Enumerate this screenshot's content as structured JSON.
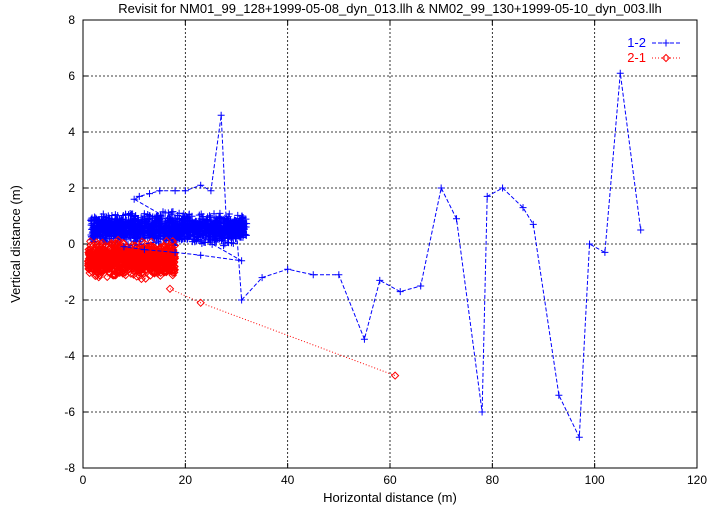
{
  "chart_data": {
    "type": "line",
    "title": "Revisit for NM01_99_128+1999-05-08_dyn_013.llh & NM02_99_130+1999-05-10_dyn_003.llh",
    "xlabel": "Horizontal distance (m)",
    "ylabel": "Vertical distance (m)",
    "xlim": [
      0,
      120
    ],
    "ylim": [
      -8,
      8
    ],
    "xticks": [
      0,
      20,
      40,
      60,
      80,
      100,
      120
    ],
    "yticks": [
      -8,
      -6,
      -4,
      -2,
      0,
      2,
      4,
      6,
      8
    ],
    "grid": true,
    "legend_position": "top-right",
    "series": [
      {
        "name": "1-2",
        "color": "#0000ff",
        "marker": "plus",
        "line_style": "dashed",
        "points": [
          [
            28,
            0.8
          ],
          [
            27,
            4.6
          ],
          [
            25,
            1.9
          ],
          [
            23,
            2.1
          ],
          [
            20,
            1.9
          ],
          [
            18,
            1.9
          ],
          [
            15,
            1.9
          ],
          [
            13,
            1.8
          ],
          [
            11,
            1.7
          ],
          [
            10,
            1.6
          ],
          [
            31,
            -0.6
          ],
          [
            23,
            -0.4
          ],
          [
            18,
            -0.3
          ],
          [
            12,
            -0.2
          ],
          [
            8,
            -0.1
          ],
          [
            30,
            0.5
          ],
          [
            31,
            -2.0
          ],
          [
            35,
            -1.2
          ],
          [
            40,
            -0.9
          ],
          [
            45,
            -1.1
          ],
          [
            50,
            -1.1
          ],
          [
            55,
            -3.4
          ],
          [
            58,
            -1.3
          ],
          [
            62,
            -1.7
          ],
          [
            66,
            -1.5
          ],
          [
            70,
            2.0
          ],
          [
            73,
            0.9
          ],
          [
            78,
            -6.0
          ],
          [
            79,
            1.7
          ],
          [
            82,
            2.0
          ],
          [
            86,
            1.3
          ],
          [
            88,
            0.7
          ],
          [
            93,
            -5.4
          ],
          [
            97,
            -6.9
          ],
          [
            99,
            0.0
          ],
          [
            102,
            -0.3
          ],
          [
            105,
            6.1
          ],
          [
            109,
            0.5
          ]
        ]
      },
      {
        "name": "2-1",
        "color": "#ff0000",
        "marker": "diamond",
        "line_style": "dotted",
        "points": [
          [
            17,
            -1.6
          ],
          [
            23,
            -2.1
          ],
          [
            61,
            -4.7
          ]
        ]
      }
    ],
    "dense_clusters": [
      {
        "series": "1-2",
        "x_range": [
          1.5,
          32
        ],
        "y_range": [
          -0.1,
          1.3
        ],
        "y_center": 0.55,
        "note_points": 1400
      },
      {
        "series": "2-1",
        "x_range": [
          1,
          18
        ],
        "y_range": [
          -1.5,
          0.1
        ],
        "y_center": -0.55,
        "note_points": 900
      }
    ]
  }
}
